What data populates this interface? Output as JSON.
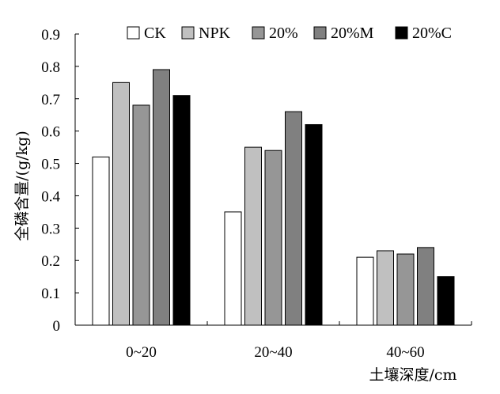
{
  "chart_data": {
    "type": "bar",
    "categories": [
      "0~20",
      "20~40",
      "40~60"
    ],
    "series": [
      {
        "name": "CK",
        "color": "#ffffff",
        "values": [
          0.52,
          0.35,
          0.21
        ]
      },
      {
        "name": "NPK",
        "color": "#c0c0c0",
        "values": [
          0.75,
          0.55,
          0.23
        ]
      },
      {
        "name": "20%",
        "color": "#969696",
        "values": [
          0.68,
          0.54,
          0.22
        ]
      },
      {
        "name": "20%M",
        "color": "#808080",
        "values": [
          0.79,
          0.66,
          0.24
        ]
      },
      {
        "name": "20%C",
        "color": "#000000",
        "values": [
          0.71,
          0.62,
          0.15
        ]
      }
    ],
    "ylim": [
      0,
      0.9
    ],
    "yticks": [
      "0",
      "0.1",
      "0.2",
      "0.3",
      "0.4",
      "0.5",
      "0.6",
      "0.7",
      "0.8",
      "0.9"
    ],
    "ylabel": "全磷含量/(g/kg)",
    "xlabel": "土壤深度/cm",
    "legend_position": "top",
    "grid": false
  }
}
